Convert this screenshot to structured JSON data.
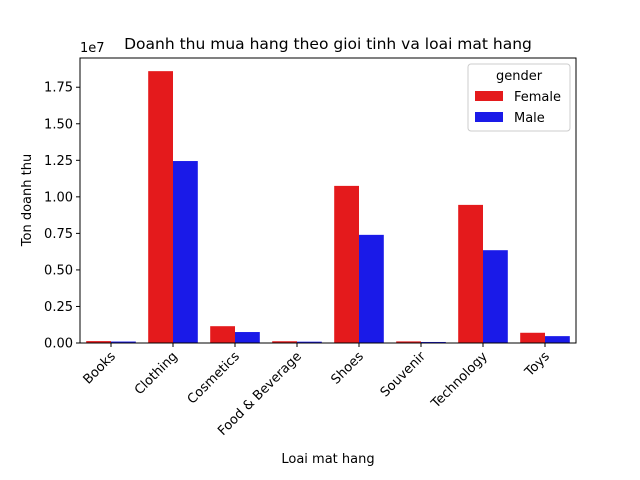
{
  "chart_data": {
    "type": "bar",
    "title": "Doanh thu mua hang theo gioi tinh va loai mat hang",
    "xlabel": "Loai mat hang",
    "ylabel": "Ton doanh thu",
    "y_offset_text": "1e7",
    "ylim": [
      0,
      19500000
    ],
    "y_ticks": [
      0,
      2500000,
      5000000,
      7500000,
      10000000,
      12500000,
      15000000,
      17500000
    ],
    "y_tick_labels": [
      "0.00",
      "0.25",
      "0.50",
      "0.75",
      "1.00",
      "1.25",
      "1.50",
      "1.75"
    ],
    "categories": [
      "Books",
      "Clothing",
      "Cosmetics",
      "Food & Beverage",
      "Shoes",
      "Souvenir",
      "Technology",
      "Toys"
    ],
    "legend": {
      "title": "gender",
      "position": "top-right"
    },
    "grid": false,
    "series": [
      {
        "name": "Female",
        "color": "#e41a1c",
        "values": [
          130000,
          18600000,
          1150000,
          120000,
          10750000,
          110000,
          9450000,
          700000
        ]
      },
      {
        "name": "Male",
        "color": "#1a1ae8",
        "values": [
          100000,
          12450000,
          750000,
          90000,
          7400000,
          70000,
          6350000,
          470000
        ]
      }
    ]
  }
}
